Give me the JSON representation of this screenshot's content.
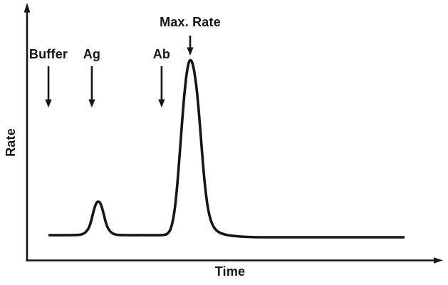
{
  "figure": {
    "background": "#ffffff",
    "ink_color": "#161616"
  },
  "chart_data": {
    "type": "line",
    "title": "",
    "xlabel": "Time",
    "ylabel": "Rate",
    "x_axis": {
      "style": "arrow-axis",
      "tick_labels": [],
      "range": [
        0,
        1
      ]
    },
    "y_axis": {
      "style": "arrow-axis",
      "tick_labels": [],
      "range": [
        0,
        1
      ]
    },
    "legend": null,
    "grid": false,
    "series": [
      {
        "name": "reaction-rate-curve",
        "color": "#161616",
        "points": [
          [
            0.0515,
            0.1261
          ],
          [
            0.1063,
            0.1261
          ],
          [
            0.1269,
            0.1279
          ],
          [
            0.1355,
            0.1332
          ],
          [
            0.1424,
            0.1439
          ],
          [
            0.1492,
            0.1652
          ],
          [
            0.1544,
            0.1972
          ],
          [
            0.1595,
            0.2398
          ],
          [
            0.1647,
            0.2753
          ],
          [
            0.1681,
            0.2895
          ],
          [
            0.1715,
            0.2931
          ],
          [
            0.175,
            0.2895
          ],
          [
            0.1784,
            0.2753
          ],
          [
            0.1835,
            0.2398
          ],
          [
            0.1887,
            0.1972
          ],
          [
            0.1938,
            0.1652
          ],
          [
            0.2007,
            0.1439
          ],
          [
            0.2075,
            0.1332
          ],
          [
            0.2161,
            0.1279
          ],
          [
            0.235,
            0.1261
          ],
          [
            0.2779,
            0.1261
          ],
          [
            0.3208,
            0.1261
          ],
          [
            0.3345,
            0.1297
          ],
          [
            0.3413,
            0.1403
          ],
          [
            0.3465,
            0.1616
          ],
          [
            0.3516,
            0.2042
          ],
          [
            0.3568,
            0.2753
          ],
          [
            0.3619,
            0.3819
          ],
          [
            0.3671,
            0.5169
          ],
          [
            0.3722,
            0.659
          ],
          [
            0.3774,
            0.794
          ],
          [
            0.3825,
            0.9005
          ],
          [
            0.3859,
            0.9503
          ],
          [
            0.3894,
            0.9858
          ],
          [
            0.3928,
            0.9982
          ],
          [
            0.3962,
            0.9929
          ],
          [
            0.3997,
            0.9716
          ],
          [
            0.4031,
            0.9361
          ],
          [
            0.4082,
            0.8579
          ],
          [
            0.4134,
            0.7478
          ],
          [
            0.4185,
            0.6163
          ],
          [
            0.4237,
            0.4813
          ],
          [
            0.4288,
            0.3677
          ],
          [
            0.434,
            0.2824
          ],
          [
            0.4391,
            0.2256
          ],
          [
            0.4443,
            0.19
          ],
          [
            0.4511,
            0.1616
          ],
          [
            0.4597,
            0.1439
          ],
          [
            0.47,
            0.1332
          ],
          [
            0.4837,
            0.1261
          ],
          [
            0.5043,
            0.1208
          ],
          [
            0.5317,
            0.1172
          ],
          [
            0.5695,
            0.1155
          ],
          [
            0.6552,
            0.1155
          ],
          [
            0.7581,
            0.1155
          ],
          [
            0.9091,
            0.1155
          ]
        ]
      }
    ],
    "annotations": [
      {
        "label": "Buffer",
        "t": 0.0515,
        "kind": "event"
      },
      {
        "label": "Ag",
        "t": 0.156,
        "kind": "event"
      },
      {
        "label": "Ab",
        "t": 0.324,
        "kind": "event"
      },
      {
        "label": "Max. Rate",
        "t": 0.3928,
        "kind": "peak"
      }
    ],
    "features": {
      "baseline_rate": 0.126,
      "small_peak": {
        "t": 0.1715,
        "rate": 0.293
      },
      "main_peak": {
        "t": 0.3928,
        "rate": 1.0
      }
    }
  }
}
